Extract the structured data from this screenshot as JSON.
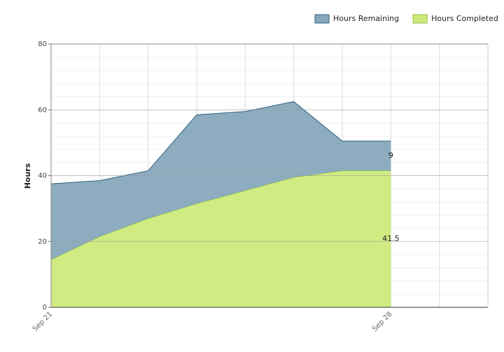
{
  "chart_data": {
    "type": "stacked_area",
    "y_label": "Hours",
    "categories": [
      "Sep 21",
      null,
      null,
      null,
      null,
      null,
      null,
      "Sep 28",
      null,
      null
    ],
    "series": [
      {
        "name": "Hours Remaining",
        "color": "#87a8bc",
        "line_color": "#2f6482",
        "values": [
          23,
          17,
          14.5,
          27,
          24,
          23,
          9,
          9,
          null,
          null
        ]
      },
      {
        "name": "Hours Completed",
        "color": "#cdea7a",
        "line_color": "#8cbf3c",
        "values": [
          14.5,
          21.5,
          27,
          31.5,
          35.5,
          39.5,
          41.5,
          41.5,
          null,
          null
        ]
      }
    ],
    "ylim": [
      0,
      80
    ],
    "yticks": [
      0,
      20,
      40,
      60,
      80
    ],
    "yminorticks": [
      4,
      8,
      12,
      16,
      24,
      28,
      32,
      36,
      44,
      48,
      52,
      56,
      64,
      68,
      72,
      76
    ],
    "grid": true,
    "legend": "top-right"
  }
}
